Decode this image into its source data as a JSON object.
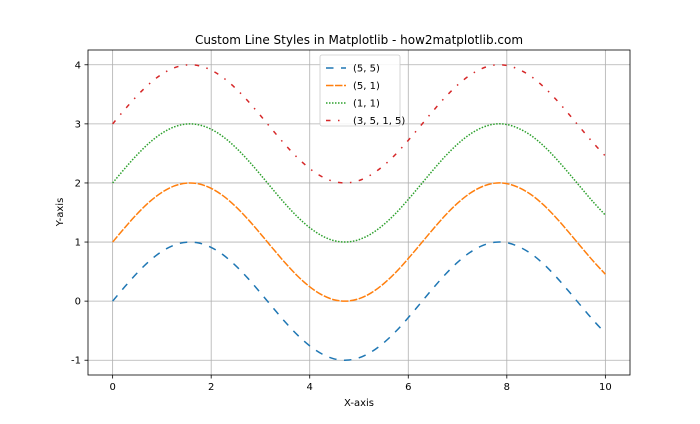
{
  "chart_data": {
    "type": "line",
    "title": "Custom Line Styles in Matplotlib - how2matplotlib.com",
    "xlabel": "X-axis",
    "ylabel": "Y-axis",
    "xlim": [
      -0.5,
      10.5
    ],
    "ylim": [
      -1.25,
      4.25
    ],
    "xticks": [
      0,
      2,
      4,
      6,
      8,
      10
    ],
    "xtick_labels": [
      "0",
      "2",
      "4",
      "6",
      "8",
      "10"
    ],
    "yticks": [
      -1,
      0,
      1,
      2,
      3,
      4
    ],
    "ytick_labels": [
      "-1",
      "0",
      "1",
      "2",
      "3",
      "4"
    ],
    "grid": true,
    "legend_position": "top-center",
    "x": [
      0,
      0.25,
      0.5,
      0.75,
      1,
      1.25,
      1.5,
      1.75,
      2,
      2.25,
      2.5,
      2.75,
      3,
      3.25,
      3.5,
      3.75,
      4,
      4.25,
      4.5,
      4.75,
      5,
      5.25,
      5.5,
      5.75,
      6,
      6.25,
      6.5,
      6.75,
      7,
      7.25,
      7.5,
      7.75,
      8,
      8.25,
      8.5,
      8.75,
      9,
      9.25,
      9.5,
      9.75,
      10
    ],
    "base_sin": [
      0,
      0.247,
      0.479,
      0.682,
      0.841,
      0.949,
      0.997,
      0.984,
      0.909,
      0.778,
      0.598,
      0.382,
      0.141,
      -0.108,
      -0.351,
      -0.572,
      -0.757,
      -0.895,
      -0.978,
      -0.999,
      -0.959,
      -0.859,
      -0.706,
      -0.51,
      -0.279,
      -0.033,
      0.215,
      0.451,
      0.657,
      0.823,
      0.938,
      0.996,
      0.989,
      0.919,
      0.798,
      0.625,
      0.412,
      0.173,
      -0.075,
      -0.319,
      -0.544
    ],
    "series": [
      {
        "name": "(5, 5)",
        "offset": 0,
        "color": "#1f77b4",
        "dash": [
          5,
          5
        ]
      },
      {
        "name": "(5, 1)",
        "offset": 1,
        "color": "#ff7f0e",
        "dash": [
          5,
          1
        ]
      },
      {
        "name": "(1, 1)",
        "offset": 2,
        "color": "#2ca02c",
        "dash": [
          1,
          1
        ]
      },
      {
        "name": "(3, 5, 1, 5)",
        "offset": 3,
        "color": "#d62728",
        "dash": [
          3,
          5,
          1,
          5
        ]
      }
    ]
  }
}
